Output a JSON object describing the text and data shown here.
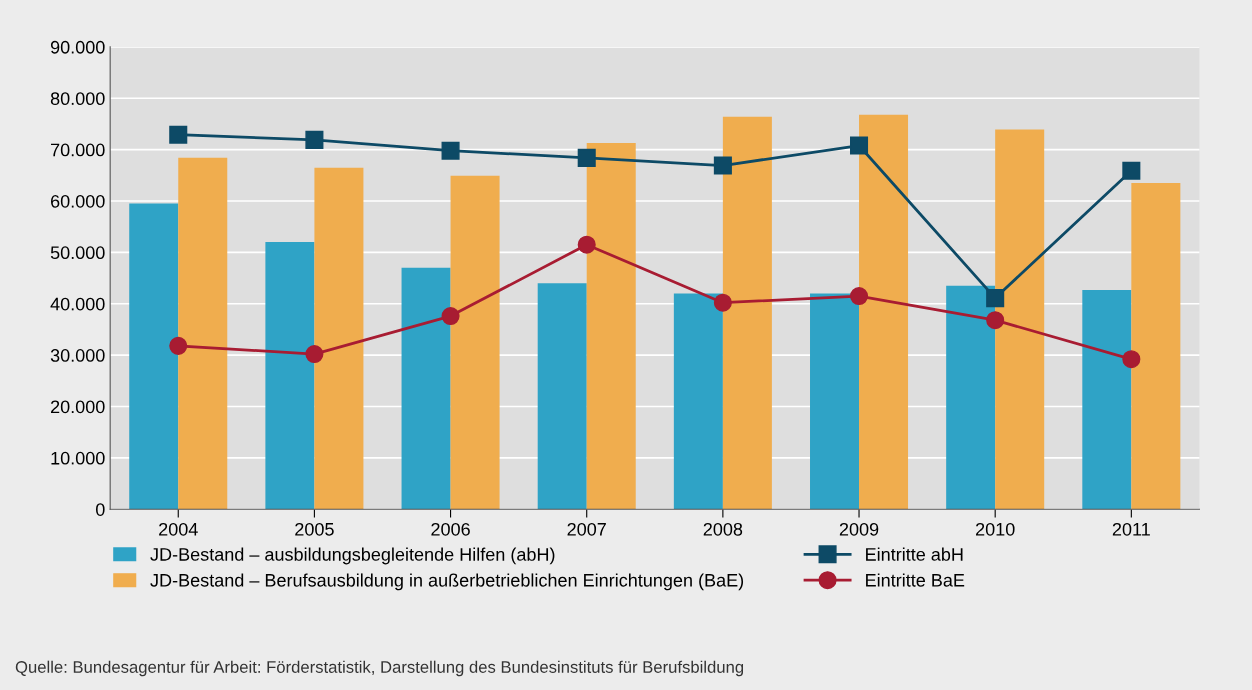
{
  "chart_data": {
    "type": "bar",
    "categories": [
      "2004",
      "2005",
      "2006",
      "2007",
      "2008",
      "2009",
      "2010",
      "2011"
    ],
    "series": [
      {
        "name": "JD-Bestand – ausbildungsbegleitende Hilfen (abH)",
        "color": "#2fa3c6",
        "values": [
          59500,
          52000,
          47000,
          44000,
          42000,
          42000,
          43500,
          42700
        ]
      },
      {
        "name": "JD-Bestand – Berufsausbildung in außerbetrieblichen Einrichtungen (BaE)",
        "color": "#f0ad4e",
        "values": [
          68400,
          66500,
          64900,
          71300,
          76400,
          76800,
          73900,
          63500
        ]
      },
      {
        "name": "Eintritte abH",
        "type": "line",
        "marker": "square",
        "color": "#0d4a66",
        "values": [
          72900,
          71900,
          69800,
          68400,
          66900,
          70800,
          41100,
          65900
        ]
      },
      {
        "name": "Eintritte BaE",
        "type": "line",
        "marker": "circle",
        "color": "#a81c32",
        "values": [
          31800,
          30200,
          37600,
          51500,
          40200,
          41500,
          36800,
          29200
        ]
      }
    ],
    "ylim": [
      0,
      90000
    ],
    "yticks": [
      {
        "value": 0,
        "label": "0"
      },
      {
        "value": 10000,
        "label": "10.000"
      },
      {
        "value": 20000,
        "label": "20.000"
      },
      {
        "value": 30000,
        "label": "30.000"
      },
      {
        "value": 40000,
        "label": "40.000"
      },
      {
        "value": 50000,
        "label": "50.000"
      },
      {
        "value": 60000,
        "label": "60.000"
      },
      {
        "value": 70000,
        "label": "70.000"
      },
      {
        "value": 80000,
        "label": "80.000"
      },
      {
        "value": 90000,
        "label": "90.000"
      }
    ],
    "grid": "y",
    "legend": "bottom",
    "annotations": [
      "Quelle: Bundesagentur für Arbeit: Förderstatistik, Darstellung des Bundesinstituts für Berufsbildung"
    ]
  }
}
